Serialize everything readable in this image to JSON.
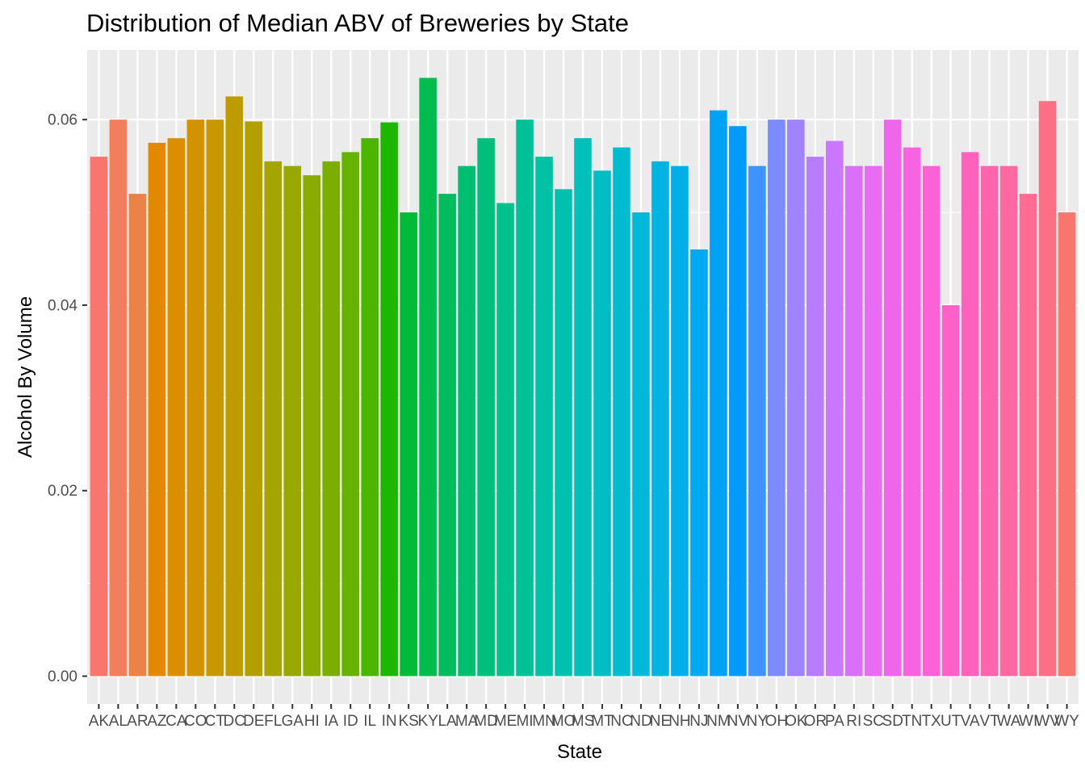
{
  "chart_data": {
    "type": "bar",
    "title": "Distribution of Median ABV of Breweries by State",
    "xlabel": "State",
    "ylabel": "Alcohol By Volume",
    "ylim": [
      -0.003,
      0.0675
    ],
    "yticks": [
      "0.00",
      "0.02",
      "0.04",
      "0.06"
    ],
    "ytick_values": [
      0,
      0.02,
      0.04,
      0.06
    ],
    "grid": true,
    "legend": "none",
    "background": "#ebebeb",
    "grid_color": "#ffffff",
    "categories": [
      "AK",
      "AL",
      "AR",
      "AZ",
      "CA",
      "CO",
      "CT",
      "DC",
      "DE",
      "FL",
      "GA",
      "HI",
      "IA",
      "ID",
      "IL",
      "IN",
      "KS",
      "KY",
      "LA",
      "MA",
      "MD",
      "ME",
      "MI",
      "MN",
      "MO",
      "MS",
      "MT",
      "NC",
      "ND",
      "NE",
      "NH",
      "NJ",
      "NM",
      "NV",
      "NY",
      "OH",
      "OK",
      "OR",
      "PA",
      "RI",
      "SC",
      "SD",
      "TN",
      "TX",
      "UT",
      "VA",
      "VT",
      "WA",
      "WI",
      "WV",
      "WY"
    ],
    "values": [
      0.056,
      0.06,
      0.052,
      0.0575,
      0.058,
      0.06,
      0.06,
      0.0625,
      0.0598,
      0.0555,
      0.055,
      0.054,
      0.0555,
      0.0565,
      0.058,
      0.0597,
      0.05,
      0.0645,
      0.052,
      0.055,
      0.058,
      0.051,
      0.06,
      0.056,
      0.0525,
      0.058,
      0.0545,
      0.057,
      0.05,
      0.0555,
      0.055,
      0.046,
      0.061,
      0.0593,
      0.055,
      0.06,
      0.06,
      0.056,
      0.0577,
      0.055,
      0.055,
      0.06,
      0.057,
      0.055,
      0.04,
      0.0565,
      0.055,
      0.055,
      0.052,
      0.062,
      0.05
    ],
    "colors": [
      "#F8766D",
      "#F17F5D",
      "#EA8345",
      "#E38900",
      "#DB8E00",
      "#D39200",
      "#C99700",
      "#BE9C00",
      "#B3A000",
      "#A6A400",
      "#99A800",
      "#8AAB00",
      "#7AAE00",
      "#66B200",
      "#4BB500",
      "#1DB700",
      "#00BA38",
      "#00BB4E",
      "#00BC5F",
      "#00BE6F",
      "#00BF7D",
      "#00C08B",
      "#00C097",
      "#00C1A3",
      "#00C0AF",
      "#00C0BA",
      "#00BEC4",
      "#00BCCE",
      "#00B8D8",
      "#00B4E1",
      "#00AFE9",
      "#00A9F0",
      "#00A2F6",
      "#009AFB",
      "#3F93FF",
      "#7C8BFF",
      "#9F83FF",
      "#B77CFF",
      "#CA76FF",
      "#DA70F9",
      "#E76BF3",
      "#F066EA",
      "#F763E0",
      "#FC61D5",
      "#FF61C9",
      "#FF62BC",
      "#FF64AF",
      "#FF68A1",
      "#FF6B93",
      "#FC6F84",
      "#F8766D"
    ]
  }
}
